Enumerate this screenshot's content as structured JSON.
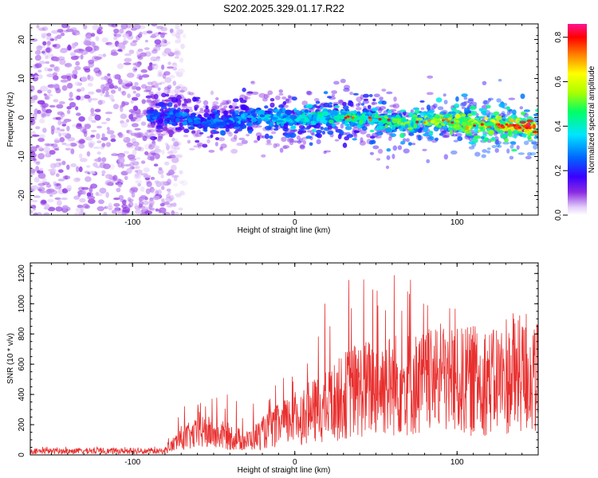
{
  "title": "S202.2025.329.01.17.R22",
  "chart_data": [
    {
      "type": "heatmap",
      "xlabel": "Height of straight line (km)",
      "ylabel": "Frequency (Hz)",
      "xlim": [
        -163,
        150
      ],
      "ylim": [
        -25,
        24
      ],
      "x_ticks": [
        -100,
        0,
        100
      ],
      "y_ticks": [
        -20,
        -10,
        0,
        10,
        20
      ],
      "colorbar": {
        "label": "Normalized spectral amplitude",
        "range": [
          0,
          0.86
        ],
        "ticks": [
          0.0,
          0.2,
          0.4,
          0.6,
          0.8
        ]
      },
      "noise_region": {
        "x_range": [
          -163,
          -80
        ],
        "y_range": [
          -25,
          24
        ],
        "amplitude": 0.05
      },
      "signal_band": {
        "x_range": [
          -90,
          150
        ],
        "center_freq": [
          {
            "x": -90,
            "y": 0.5
          },
          {
            "x": -70,
            "y": 0.5
          },
          {
            "x": -60,
            "y": -1
          },
          {
            "x": -45,
            "y": -1.5
          },
          {
            "x": -30,
            "y": 0
          },
          {
            "x": -10,
            "y": 0
          },
          {
            "x": 0,
            "y": -0.5
          },
          {
            "x": 20,
            "y": 0
          },
          {
            "x": 35,
            "y": 0
          },
          {
            "x": 50,
            "y": -0.5
          },
          {
            "x": 70,
            "y": -1.5
          },
          {
            "x": 90,
            "y": -0.5
          },
          {
            "x": 105,
            "y": -1.5
          },
          {
            "x": 120,
            "y": -2
          },
          {
            "x": 150,
            "y": -2.5
          }
        ],
        "half_width_hz": 3,
        "peak_amplitude": [
          {
            "x": -90,
            "y": 0.25
          },
          {
            "x": -40,
            "y": 0.3
          },
          {
            "x": 0,
            "y": 0.4
          },
          {
            "x": 50,
            "y": 0.45
          },
          {
            "x": 90,
            "y": 0.55
          },
          {
            "x": 120,
            "y": 0.7
          },
          {
            "x": 150,
            "y": 0.75
          }
        ]
      }
    },
    {
      "type": "line",
      "xlabel": "Height of straight line (km)",
      "ylabel": "SNR (10 * v/v)",
      "xlim": [
        -163,
        150
      ],
      "ylim": [
        0,
        1270
      ],
      "x_ticks": [
        -100,
        0,
        100
      ],
      "y_ticks": [
        0,
        200,
        400,
        600,
        800,
        1000,
        1200
      ],
      "color": "#e8302f",
      "series_envelope": [
        {
          "x": -163,
          "mean": 25,
          "max": 55
        },
        {
          "x": -80,
          "mean": 25,
          "max": 55
        },
        {
          "x": -70,
          "mean": 110,
          "max": 360
        },
        {
          "x": -55,
          "mean": 150,
          "max": 370
        },
        {
          "x": -40,
          "mean": 120,
          "max": 410
        },
        {
          "x": -30,
          "mean": 90,
          "max": 300
        },
        {
          "x": -15,
          "mean": 170,
          "max": 450
        },
        {
          "x": 0,
          "mean": 240,
          "max": 600
        },
        {
          "x": 20,
          "mean": 320,
          "max": 1040
        },
        {
          "x": 35,
          "mean": 420,
          "max": 1240
        },
        {
          "x": 50,
          "mean": 450,
          "max": 1200
        },
        {
          "x": 65,
          "mean": 470,
          "max": 1270
        },
        {
          "x": 80,
          "mean": 470,
          "max": 1050
        },
        {
          "x": 100,
          "mean": 480,
          "max": 1000
        },
        {
          "x": 120,
          "mean": 500,
          "max": 800
        },
        {
          "x": 140,
          "mean": 510,
          "max": 1010
        },
        {
          "x": 150,
          "mean": 520,
          "max": 850
        }
      ]
    }
  ]
}
